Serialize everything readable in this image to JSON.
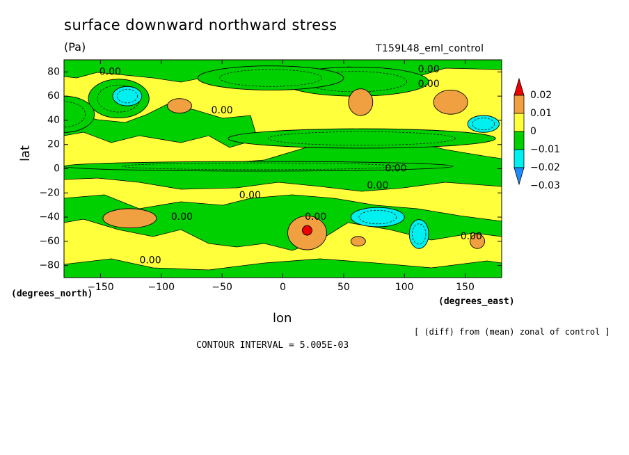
{
  "chart_data": {
    "type": "heatmap",
    "title": "surface downward northward stress",
    "units": "(Pa)",
    "dataset": "T159L48_eml_control",
    "xlabel": "lon",
    "ylabel": "lat",
    "x_units": "(degrees_east)",
    "y_units": "(degrees_north)",
    "note": "[ (diff) from (mean) zonal of control ]",
    "contour_interval": "CONTOUR INTERVAL = 5.005E-03",
    "xlim": [
      -180,
      180
    ],
    "ylim": [
      -90,
      90
    ],
    "x_ticks": [
      -150,
      -100,
      -50,
      0,
      50,
      100,
      150
    ],
    "x_tick_labels": [
      "-150",
      "-100",
      "-50",
      "0",
      "50",
      "100",
      "150"
    ],
    "y_ticks": [
      80,
      60,
      40,
      20,
      0,
      -20,
      -40,
      -60,
      -80
    ],
    "y_tick_labels": [
      "80",
      "60",
      "40",
      "20",
      "0",
      "-20",
      "-40",
      "-60",
      "-80"
    ],
    "colorbar": {
      "levels": [
        0.02,
        0.01,
        0,
        -0.01,
        -0.02,
        -0.03
      ],
      "labels": [
        "0.02",
        "0.01",
        "0",
        "-0.01",
        "-0.02",
        "-0.03"
      ],
      "colors": [
        "#ee0000",
        "#f0a040",
        "#ffff3c",
        "#00d000",
        "#00f0f0",
        "#1e8cff"
      ]
    },
    "contour_labels": [
      {
        "lon": -142,
        "lat": 80,
        "text": "0.00"
      },
      {
        "lon": -50,
        "lat": 48,
        "text": "0.00"
      },
      {
        "lon": 120,
        "lat": 82,
        "text": "0.00"
      },
      {
        "lon": 120,
        "lat": 70,
        "text": "0.00"
      },
      {
        "lon": 93,
        "lat": 0,
        "text": "0.00"
      },
      {
        "lon": 78,
        "lat": -14,
        "text": "0.00"
      },
      {
        "lon": -27,
        "lat": -22,
        "text": "0.00"
      },
      {
        "lon": -83,
        "lat": -40,
        "text": "0.00"
      },
      {
        "lon": 27,
        "lat": -40,
        "text": "0.00"
      },
      {
        "lon": 155,
        "lat": -56,
        "text": "0.00"
      },
      {
        "lon": -109,
        "lat": -76,
        "text": "0.00"
      }
    ],
    "regions": [
      {
        "level": -0.01,
        "lon": -135,
        "lat": 58,
        "rx": 25,
        "ry": 16
      },
      {
        "level": -0.02,
        "lon": -128,
        "lat": 60,
        "rx": 12,
        "ry": 8
      },
      {
        "level": -0.01,
        "lon": 60,
        "lat": 72,
        "rx": 60,
        "ry": 12
      },
      {
        "level": -0.01,
        "lon": -10,
        "lat": 75,
        "rx": 60,
        "ry": 10
      },
      {
        "level": -0.01,
        "lon": -180,
        "lat": 45,
        "rx": 25,
        "ry": 15
      },
      {
        "level": 0.01,
        "lon": -85,
        "lat": 52,
        "rx": 10,
        "ry": 6
      },
      {
        "level": 0.01,
        "lon": 64,
        "lat": 55,
        "rx": 10,
        "ry": 11
      },
      {
        "level": 0.01,
        "lon": 138,
        "lat": 55,
        "rx": 14,
        "ry": 10
      },
      {
        "level": -0.02,
        "lon": 165,
        "lat": 37,
        "rx": 13,
        "ry": 7
      },
      {
        "level": -0.01,
        "lon": 65,
        "lat": 25,
        "rx": 110,
        "ry": 8
      },
      {
        "level": -0.01,
        "lon": -20,
        "lat": 2,
        "rx": 160,
        "ry": 4
      },
      {
        "level": 0.01,
        "lon": -126,
        "lat": -41,
        "rx": 22,
        "ry": 8
      },
      {
        "level": 0.01,
        "lon": 20,
        "lat": -53,
        "rx": 16,
        "ry": 14
      },
      {
        "level": 0.02,
        "lon": 20,
        "lat": -51,
        "rx": 4,
        "ry": 4
      },
      {
        "level": 0.01,
        "lon": 62,
        "lat": -60,
        "rx": 6,
        "ry": 4
      },
      {
        "level": -0.02,
        "lon": 78,
        "lat": -40,
        "rx": 22,
        "ry": 8
      },
      {
        "level": -0.02,
        "lon": 112,
        "lat": -54,
        "rx": 8,
        "ry": 12
      },
      {
        "level": 0.01,
        "lon": 160,
        "lat": -60,
        "rx": 6,
        "ry": 6
      }
    ]
  }
}
